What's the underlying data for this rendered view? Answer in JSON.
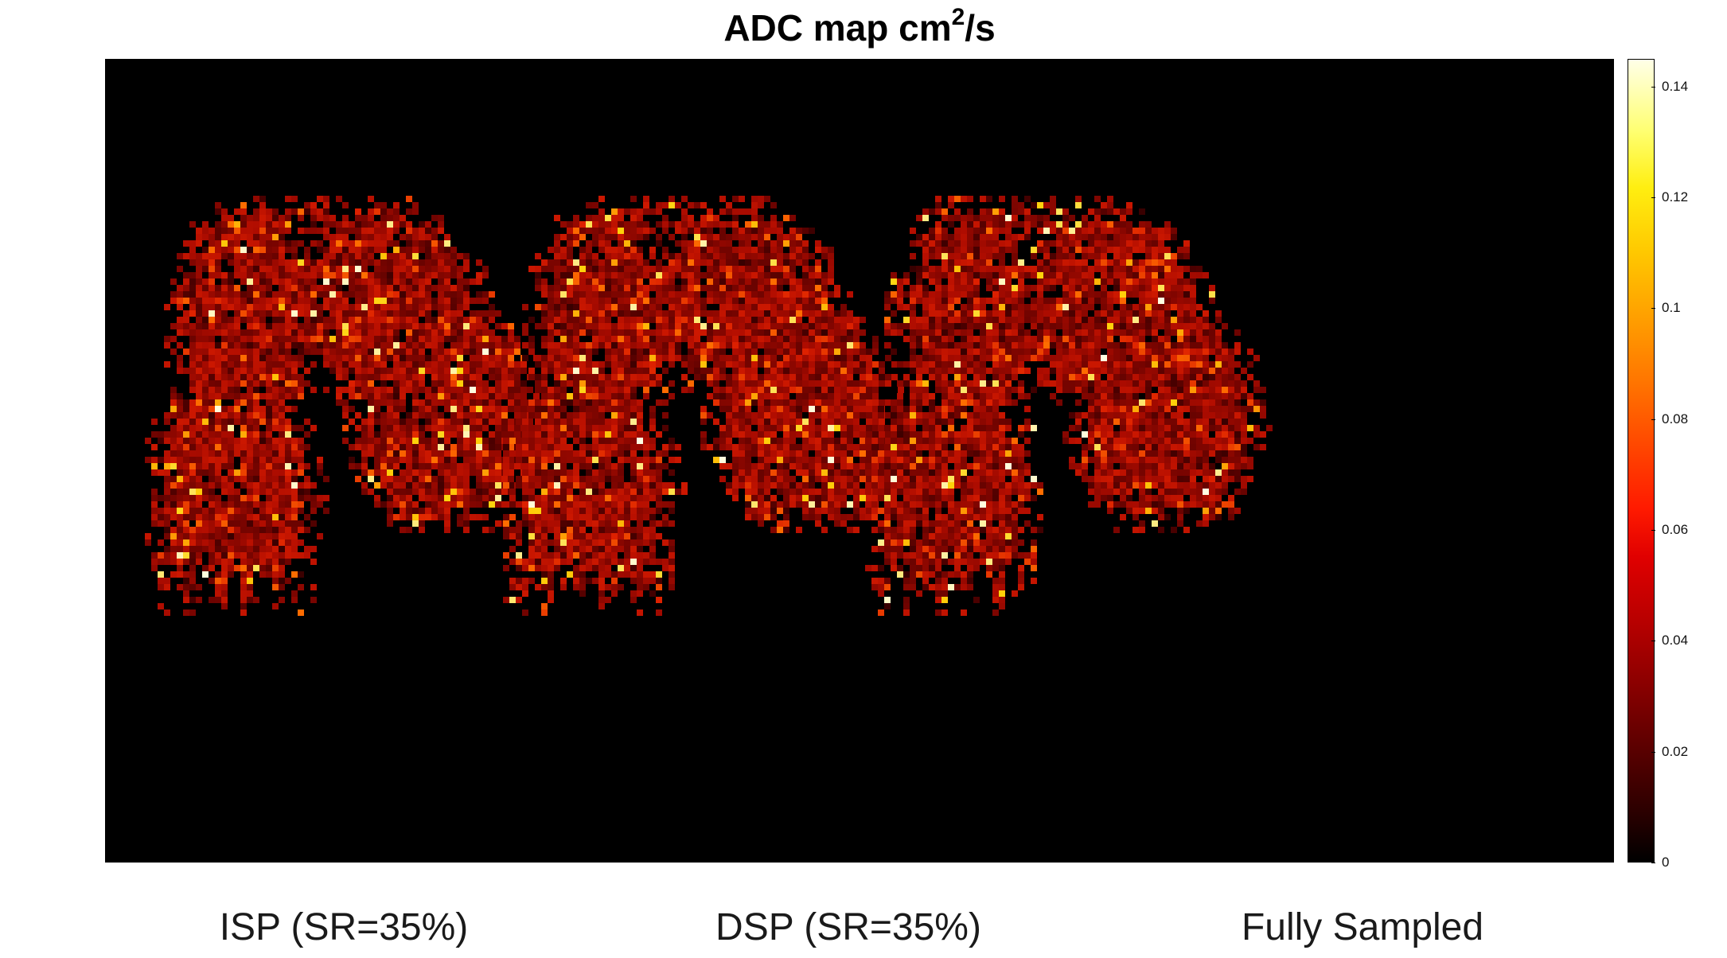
{
  "figure": {
    "title_prefix": "ADC map cm",
    "title_superscript": "2",
    "title_suffix": "/s"
  },
  "panels": [
    {
      "label": "ISP (SR=35%)"
    },
    {
      "label": "DSP (SR=35%)"
    },
    {
      "label": "Fully Sampled"
    }
  ],
  "colorbar": {
    "colormap": "hot",
    "min": 0,
    "max": 0.145,
    "ticks": [
      "0",
      "0.02",
      "0.04",
      "0.06",
      "0.08",
      "0.1",
      "0.12",
      "0.14"
    ],
    "tick_values": [
      0,
      0.02,
      0.04,
      0.06,
      0.08,
      0.1,
      0.12,
      0.14
    ]
  },
  "colors": {
    "background": "#000000",
    "tissue_low": "#5a0000",
    "tissue_mid": "#b80000",
    "hotspot": "#ffd000"
  }
}
